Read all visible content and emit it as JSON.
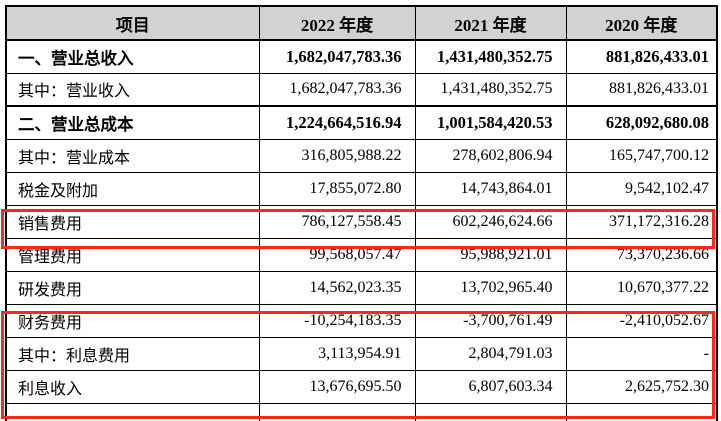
{
  "table": {
    "headers": [
      "项目",
      "2022 年度",
      "2021 年度",
      "2020 年度"
    ],
    "rows": [
      {
        "label": "一、营业总收入",
        "y2022": "1,682,047,783.36",
        "y2021": "1,431,480,352.75",
        "y2020": "881,826,433.01"
      },
      {
        "label": "其中：营业收入",
        "y2022": "1,682,047,783.36",
        "y2021": "1,431,480,352.75",
        "y2020": "881,826,433.01"
      },
      {
        "label": "二、营业总成本",
        "y2022": "1,224,664,516.94",
        "y2021": "1,001,584,420.53",
        "y2020": "628,092,680.08"
      },
      {
        "label": "其中：营业成本",
        "y2022": "316,805,988.22",
        "y2021": "278,602,806.94",
        "y2020": "165,747,700.12"
      },
      {
        "label": "税金及附加",
        "y2022": "17,855,072.80",
        "y2021": "14,743,864.01",
        "y2020": "9,542,102.47"
      },
      {
        "label": "销售费用",
        "y2022": "786,127,558.45",
        "y2021": "602,246,624.66",
        "y2020": "371,172,316.28"
      },
      {
        "label": "管理费用",
        "y2022": "99,568,057.47",
        "y2021": "95,988,921.01",
        "y2020": "73,370,236.66"
      },
      {
        "label": "研发费用",
        "y2022": "14,562,023.35",
        "y2021": "13,702,965.40",
        "y2020": "10,670,377.22"
      },
      {
        "label": "财务费用",
        "y2022": "-10,254,183.35",
        "y2021": "-3,700,761.49",
        "y2020": "-2,410,052.67"
      },
      {
        "label": "其中：利息费用",
        "y2022": "3,113,954.91",
        "y2021": "2,804,791.03",
        "y2020": "-"
      },
      {
        "label": "利息收入",
        "y2022": "13,676,695.50",
        "y2021": "6,807,603.34",
        "y2020": "2,625,752.30"
      }
    ]
  },
  "annotations": {
    "highlighted_single_row": "销售费用",
    "highlighted_row_group": [
      "财务费用",
      "其中：利息费用",
      "利息收入"
    ]
  },
  "colors": {
    "header_bg": "#d2d2d2",
    "highlight_red": "#f8291b",
    "border": "#000000"
  }
}
